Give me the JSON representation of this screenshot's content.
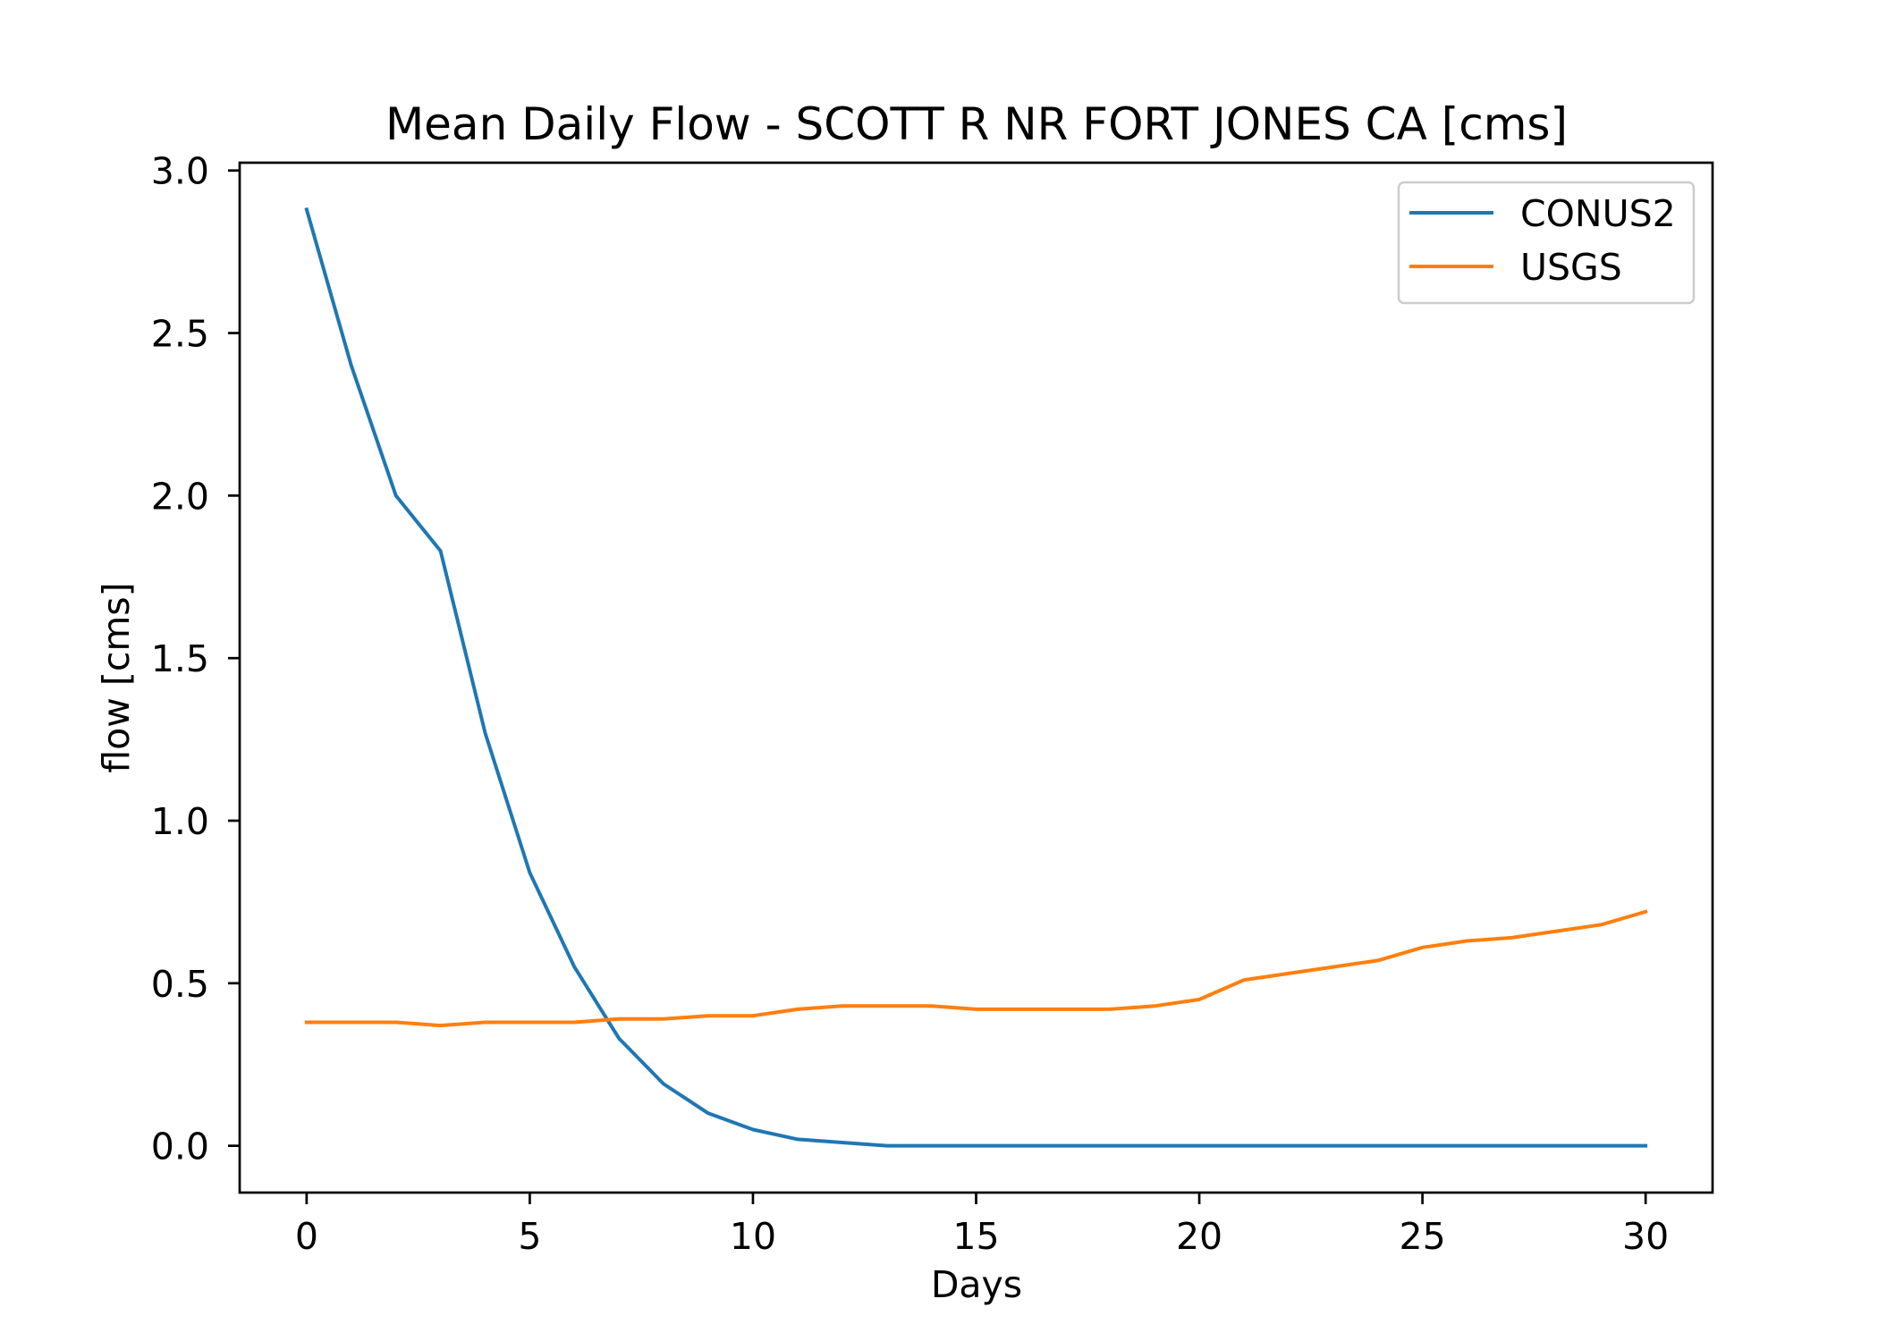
{
  "chart_data": {
    "type": "line",
    "title": "Mean Daily Flow - SCOTT R NR FORT JONES CA [cms]",
    "xlabel": "Days",
    "ylabel": "flow [cms]",
    "x": [
      0,
      1,
      2,
      3,
      4,
      5,
      6,
      7,
      8,
      9,
      10,
      11,
      12,
      13,
      14,
      15,
      16,
      17,
      18,
      19,
      20,
      21,
      22,
      23,
      24,
      25,
      26,
      27,
      28,
      29,
      30
    ],
    "series": [
      {
        "name": "CONUS2",
        "color": "#1f77b4",
        "values": [
          2.88,
          2.4,
          2.0,
          1.83,
          1.27,
          0.84,
          0.55,
          0.33,
          0.19,
          0.1,
          0.05,
          0.02,
          0.01,
          0,
          0,
          0,
          0,
          0,
          0,
          0,
          0,
          0,
          0,
          0,
          0,
          0,
          0,
          0,
          0,
          0,
          0
        ]
      },
      {
        "name": "USGS",
        "color": "#ff7f0e",
        "values": [
          0.38,
          0.38,
          0.38,
          0.37,
          0.38,
          0.38,
          0.38,
          0.39,
          0.39,
          0.4,
          0.4,
          0.42,
          0.43,
          0.43,
          0.43,
          0.42,
          0.42,
          0.42,
          0.42,
          0.43,
          0.45,
          0.51,
          0.53,
          0.55,
          0.57,
          0.61,
          0.63,
          0.64,
          0.66,
          0.68,
          0.72
        ]
      }
    ],
    "xlim": [
      -1.5,
      31.5
    ],
    "ylim": [
      -0.144,
      3.024
    ],
    "xticks": [
      0,
      5,
      10,
      15,
      20,
      25,
      30
    ],
    "xtick_labels": [
      "0",
      "5",
      "10",
      "15",
      "20",
      "25",
      "30"
    ],
    "yticks": [
      0,
      0.5,
      1.0,
      1.5,
      2.0,
      2.5,
      3.0
    ],
    "ytick_labels": [
      "0.0",
      "0.5",
      "1.0",
      "1.5",
      "2.0",
      "2.5",
      "3.0"
    ],
    "grid": false,
    "legend": "top-right"
  }
}
